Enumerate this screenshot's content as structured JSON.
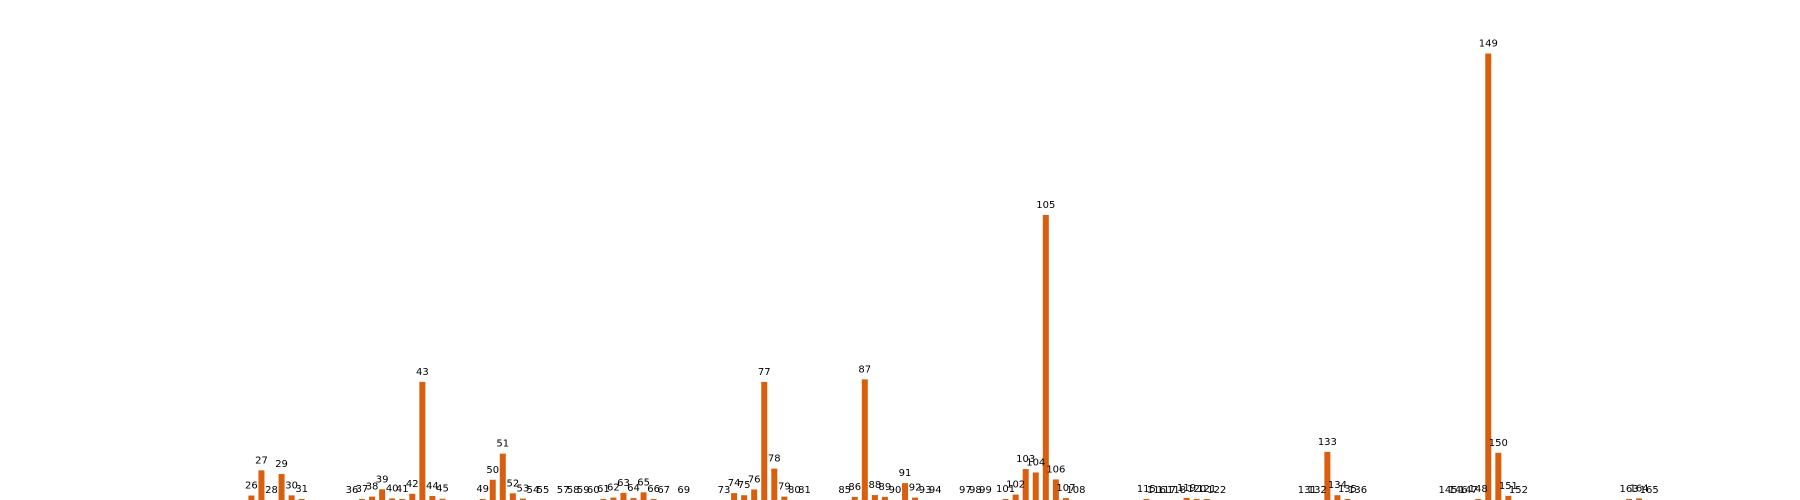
{
  "chart_data": {
    "type": "bar",
    "title": "",
    "xlabel": "",
    "ylabel": "",
    "grid": false,
    "legend": "none",
    "x_domain": [
      1,
      180
    ],
    "ylim": [
      0,
      3000
    ],
    "bar_color": "#d95f0e",
    "points": [
      {
        "x": 26,
        "label": "26",
        "value": 28
      },
      {
        "x": 27,
        "label": "27",
        "value": 186
      },
      {
        "x": 28,
        "label": "28",
        "value": 0
      },
      {
        "x": 29,
        "label": "29",
        "value": 163
      },
      {
        "x": 30,
        "label": "30",
        "value": 29
      },
      {
        "x": 31,
        "label": "31",
        "value": 4
      },
      {
        "x": 36,
        "label": "36",
        "value": 0
      },
      {
        "x": 37,
        "label": "37",
        "value": 3
      },
      {
        "x": 38,
        "label": "38",
        "value": 21
      },
      {
        "x": 39,
        "label": "39",
        "value": 67
      },
      {
        "x": 40,
        "label": "40",
        "value": 10
      },
      {
        "x": 41,
        "label": "41",
        "value": 3
      },
      {
        "x": 42,
        "label": "42",
        "value": 39
      },
      {
        "x": 43,
        "label": "43",
        "value": 741
      },
      {
        "x": 44,
        "label": "44",
        "value": 25
      },
      {
        "x": 45,
        "label": "45",
        "value": 8
      },
      {
        "x": 49,
        "label": "49",
        "value": 4
      },
      {
        "x": 50,
        "label": "50",
        "value": 127
      },
      {
        "x": 51,
        "label": "51",
        "value": 291
      },
      {
        "x": 52,
        "label": "52",
        "value": 42
      },
      {
        "x": 53,
        "label": "53",
        "value": 9
      },
      {
        "x": 54,
        "label": "54",
        "value": 0
      },
      {
        "x": 55,
        "label": "55",
        "value": 0
      },
      {
        "x": 57,
        "label": "57",
        "value": 0
      },
      {
        "x": 58,
        "label": "58",
        "value": 0
      },
      {
        "x": 59,
        "label": "59",
        "value": 0
      },
      {
        "x": 60,
        "label": "60",
        "value": 0
      },
      {
        "x": 61,
        "label": "61",
        "value": 4
      },
      {
        "x": 62,
        "label": "62",
        "value": 15
      },
      {
        "x": 63,
        "label": "63",
        "value": 45
      },
      {
        "x": 64,
        "label": "64",
        "value": 12
      },
      {
        "x": 65,
        "label": "65",
        "value": 48
      },
      {
        "x": 66,
        "label": "66",
        "value": 6
      },
      {
        "x": 67,
        "label": "67",
        "value": 0
      },
      {
        "x": 69,
        "label": "69",
        "value": 0
      },
      {
        "x": 73,
        "label": "73",
        "value": 0
      },
      {
        "x": 74,
        "label": "74",
        "value": 43
      },
      {
        "x": 75,
        "label": "75",
        "value": 30
      },
      {
        "x": 76,
        "label": "76",
        "value": 66
      },
      {
        "x": 77,
        "label": "77",
        "value": 741
      },
      {
        "x": 78,
        "label": "78",
        "value": 197
      },
      {
        "x": 79,
        "label": "79",
        "value": 21
      },
      {
        "x": 80,
        "label": "80",
        "value": 0
      },
      {
        "x": 81,
        "label": "81",
        "value": 0
      },
      {
        "x": 85,
        "label": "85",
        "value": 0
      },
      {
        "x": 86,
        "label": "86",
        "value": 19
      },
      {
        "x": 87,
        "label": "87",
        "value": 757
      },
      {
        "x": 88,
        "label": "88",
        "value": 31
      },
      {
        "x": 89,
        "label": "89",
        "value": 19
      },
      {
        "x": 90,
        "label": "90",
        "value": 0
      },
      {
        "x": 91,
        "label": "91",
        "value": 106
      },
      {
        "x": 92,
        "label": "92",
        "value": 15
      },
      {
        "x": 93,
        "label": "93",
        "value": 0
      },
      {
        "x": 94,
        "label": "94",
        "value": 0
      },
      {
        "x": 97,
        "label": "97",
        "value": 0
      },
      {
        "x": 98,
        "label": "98",
        "value": 0
      },
      {
        "x": 99,
        "label": "99",
        "value": 0
      },
      {
        "x": 101,
        "label": "101",
        "value": 4
      },
      {
        "x": 102,
        "label": "102",
        "value": 34
      },
      {
        "x": 103,
        "label": "103",
        "value": 194
      },
      {
        "x": 104,
        "label": "104",
        "value": 173
      },
      {
        "x": 105,
        "label": "105",
        "value": 1789
      },
      {
        "x": 106,
        "label": "106",
        "value": 129
      },
      {
        "x": 107,
        "label": "107",
        "value": 12
      },
      {
        "x": 108,
        "label": "108",
        "value": 0
      },
      {
        "x": 115,
        "label": "115",
        "value": 5
      },
      {
        "x": 116,
        "label": "116",
        "value": 0
      },
      {
        "x": 117,
        "label": "117",
        "value": 0
      },
      {
        "x": 118,
        "label": "118",
        "value": 0
      },
      {
        "x": 119,
        "label": "119",
        "value": 13
      },
      {
        "x": 120,
        "label": "120",
        "value": 5
      },
      {
        "x": 121,
        "label": "121",
        "value": 5
      },
      {
        "x": 122,
        "label": "122",
        "value": 0
      },
      {
        "x": 131,
        "label": "131",
        "value": 0
      },
      {
        "x": 132,
        "label": "132",
        "value": 0
      },
      {
        "x": 133,
        "label": "133",
        "value": 302
      },
      {
        "x": 134,
        "label": "134",
        "value": 30
      },
      {
        "x": 135,
        "label": "135",
        "value": 5
      },
      {
        "x": 136,
        "label": "136",
        "value": 0
      },
      {
        "x": 145,
        "label": "145",
        "value": 0
      },
      {
        "x": 146,
        "label": "146",
        "value": 0
      },
      {
        "x": 147,
        "label": "147",
        "value": 0
      },
      {
        "x": 148,
        "label": "148",
        "value": 4
      },
      {
        "x": 149,
        "label": "149",
        "value": 2802
      },
      {
        "x": 150,
        "label": "150",
        "value": 296
      },
      {
        "x": 151,
        "label": "151",
        "value": 26
      },
      {
        "x": 152,
        "label": "152",
        "value": 0
      },
      {
        "x": 163,
        "label": "163",
        "value": 3
      },
      {
        "x": 164,
        "label": "164",
        "value": 10
      },
      {
        "x": 165,
        "label": "165",
        "value": 0
      }
    ]
  }
}
